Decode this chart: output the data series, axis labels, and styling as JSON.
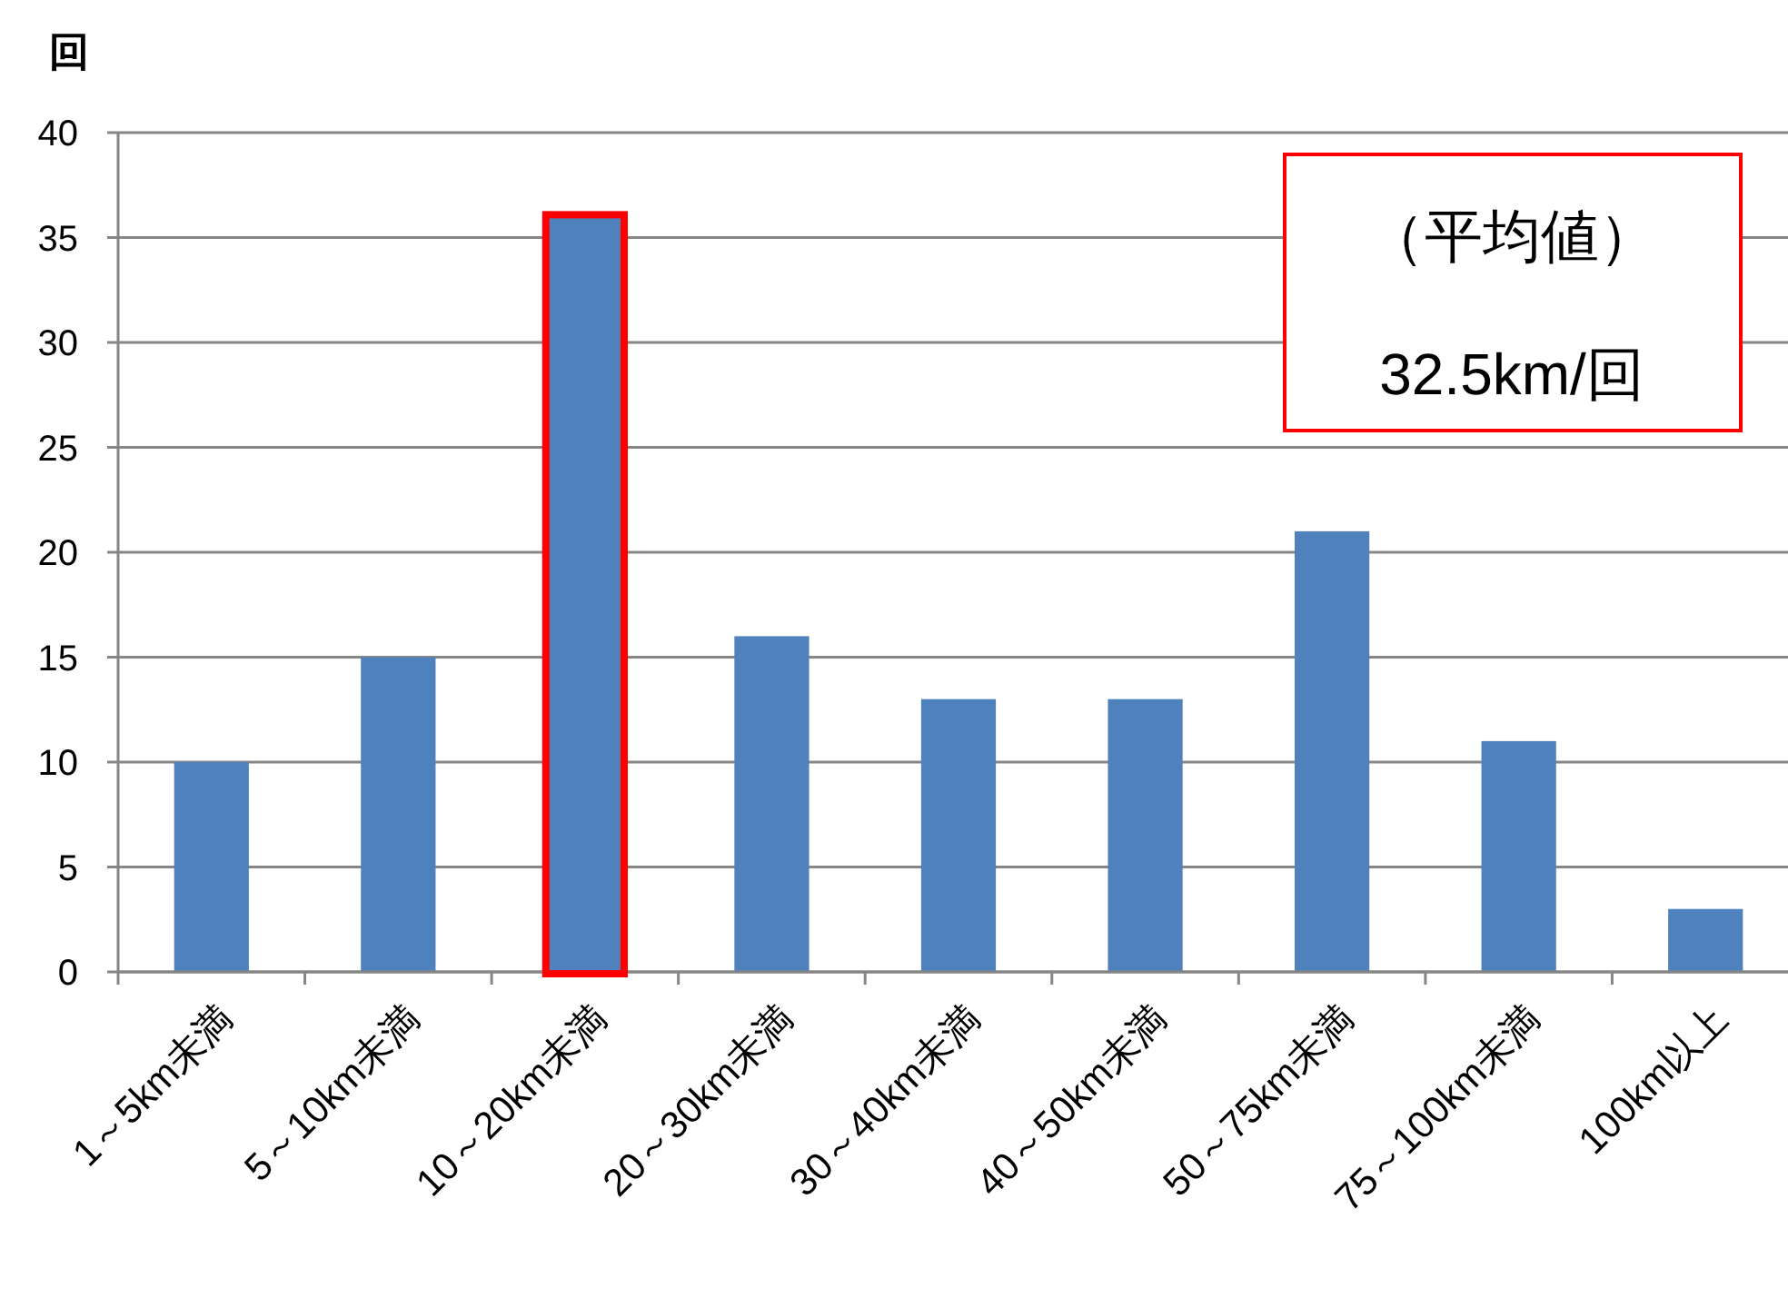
{
  "chart_data": {
    "type": "bar",
    "ylabel": "回",
    "categories": [
      "1～5km未満",
      "5～10km未満",
      "10～20km未満",
      "20～30km未満",
      "30～40km未満",
      "40～50km未満",
      "50～75km未満",
      "75～100km未満",
      "100km以上"
    ],
    "values": [
      10,
      15,
      36,
      16,
      13,
      13,
      21,
      11,
      3
    ],
    "color": "#4f81bd",
    "ylim": [
      0,
      40
    ],
    "yticks": [
      0,
      5,
      10,
      15,
      20,
      25,
      30,
      35,
      40
    ],
    "grid": "y",
    "annotations": [
      "（平均値）",
      "32.5km/回"
    ]
  }
}
